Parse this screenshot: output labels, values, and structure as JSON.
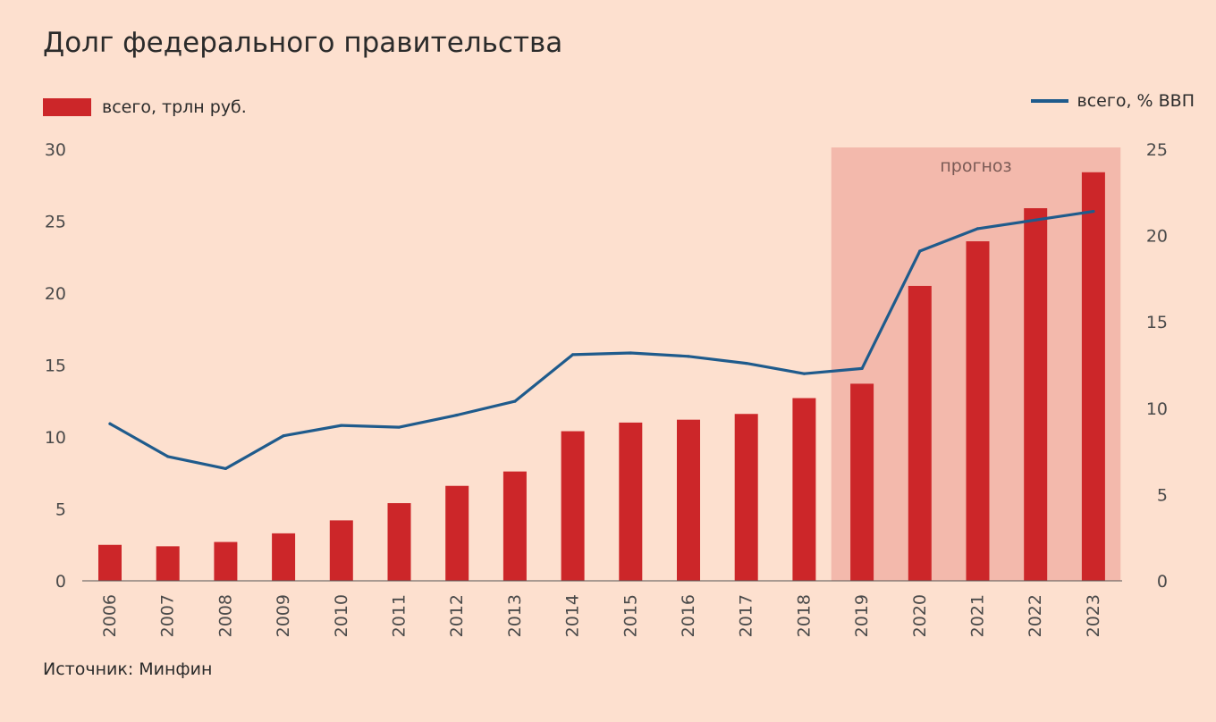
{
  "title": "Долг федерального правительства",
  "source": "Источник: Минфин",
  "colors": {
    "background": "#fde0cf",
    "bars": "#cc2629",
    "line": "#1f5b8c",
    "forecast_band": "#f3b9ac"
  },
  "chart_data": {
    "type": "bar",
    "categories": [
      "2006",
      "2007",
      "2008",
      "2009",
      "2010",
      "2011",
      "2012",
      "2013",
      "2014",
      "2015",
      "2016",
      "2017",
      "2018",
      "2019",
      "2020",
      "2021",
      "2022",
      "2023"
    ],
    "series": [
      {
        "name": "всего, трлн руб.",
        "type": "bar",
        "axis": "left",
        "values": [
          2.5,
          2.4,
          2.7,
          3.3,
          4.2,
          5.4,
          6.6,
          7.6,
          10.4,
          11.0,
          11.2,
          11.6,
          12.7,
          13.7,
          20.5,
          23.6,
          25.9,
          28.4
        ]
      },
      {
        "name": "всего, % ВВП",
        "type": "line",
        "axis": "right",
        "values": [
          9.1,
          7.2,
          6.5,
          8.4,
          9.0,
          8.9,
          9.6,
          10.4,
          13.1,
          13.2,
          13.0,
          12.6,
          12.0,
          12.3,
          19.1,
          20.4,
          20.9,
          21.4
        ]
      }
    ],
    "legend": [
      {
        "label": "всего, трлн руб.",
        "position": "top-left"
      },
      {
        "label": "всего, % ВВП",
        "position": "top-right"
      }
    ],
    "y_left": {
      "min": 0,
      "max": 30,
      "ticks": [
        "0",
        "5",
        "10",
        "15",
        "20",
        "25",
        "30"
      ]
    },
    "y_right": {
      "min": 0,
      "max": 25,
      "ticks": [
        "0",
        "5",
        "10",
        "15",
        "20",
        "25"
      ]
    },
    "forecast": {
      "label": "прогноз",
      "from": "2019",
      "to": "2023"
    },
    "grid": false
  }
}
